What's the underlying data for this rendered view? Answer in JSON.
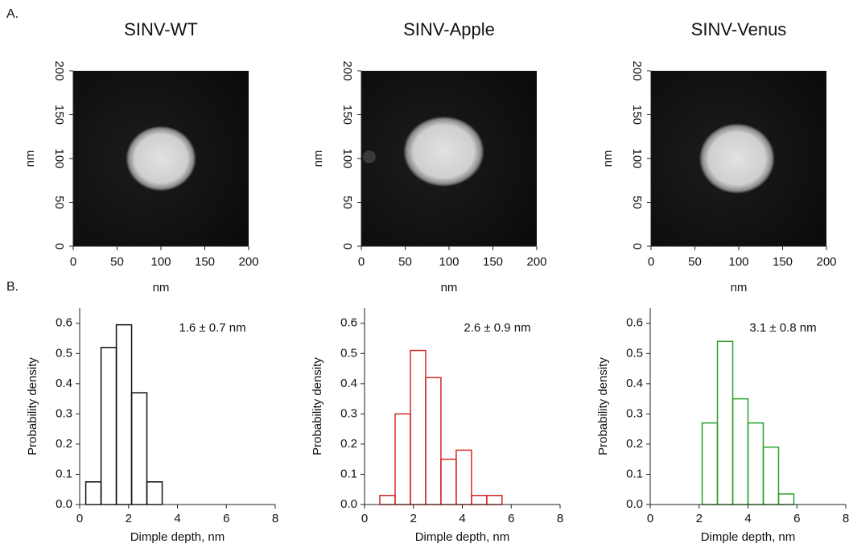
{
  "panel_labels": [
    "A.",
    "B."
  ],
  "chart_data": [
    {
      "type": "image",
      "title": "SINV-WT",
      "xlabel": "nm",
      "ylabel": "nm",
      "xlim": [
        0,
        200
      ],
      "ylim": [
        0,
        200
      ],
      "xticks": [
        0,
        50,
        100,
        150,
        200
      ],
      "yticks": [
        0,
        50,
        100,
        150,
        200
      ]
    },
    {
      "type": "image",
      "title": "SINV-Apple",
      "xlabel": "nm",
      "ylabel": "nm",
      "xlim": [
        0,
        200
      ],
      "ylim": [
        0,
        200
      ],
      "xticks": [
        0,
        50,
        100,
        150,
        200
      ],
      "yticks": [
        0,
        50,
        100,
        150,
        200
      ]
    },
    {
      "type": "image",
      "title": "SINV-Venus",
      "xlabel": "nm",
      "ylabel": "nm",
      "xlim": [
        0,
        200
      ],
      "ylim": [
        0,
        200
      ],
      "xticks": [
        0,
        50,
        100,
        150,
        200
      ],
      "yticks": [
        0,
        50,
        100,
        150,
        200
      ]
    },
    {
      "type": "histogram",
      "annotation": "1.6 ± 0.7 nm",
      "xlabel": "Dimple depth, nm",
      "ylabel": "Probability density",
      "color": "#111111",
      "bins": [
        0.25,
        0.875,
        1.5,
        2.125,
        2.75,
        3.375,
        4.0,
        4.625,
        5.25,
        5.875,
        6.5,
        7.125,
        7.75
      ],
      "values": [
        0.075,
        0.52,
        0.595,
        0.37,
        0.075,
        0,
        0,
        0,
        0,
        0,
        0,
        0
      ],
      "xlim": [
        0,
        8
      ],
      "ylim": [
        0,
        0.65
      ],
      "xticks": [
        0,
        2,
        4,
        6,
        8
      ],
      "yticks": [
        {
          "value": 0,
          "label": "0.0"
        },
        0.1,
        0.2,
        0.3,
        0.4,
        0.5,
        0.6
      ]
    },
    {
      "type": "histogram",
      "annotation": "2.6 ± 0.9 nm",
      "xlabel": "Dimple depth, nm",
      "ylabel": "Probability density",
      "color": "#d42a2a",
      "bins": [
        0.0,
        0.625,
        1.25,
        1.875,
        2.5,
        3.125,
        3.75,
        4.375,
        5.0,
        5.625,
        6.25,
        6.875,
        7.5
      ],
      "values": [
        0,
        0.03,
        0.3,
        0.51,
        0.42,
        0.15,
        0.18,
        0.03,
        0.03,
        0,
        0,
        0
      ],
      "xlim": [
        0,
        8
      ],
      "ylim": [
        0,
        0.65
      ],
      "xticks": [
        0,
        2,
        4,
        6,
        8
      ],
      "yticks": [
        {
          "value": 0,
          "label": "0.0"
        },
        0.1,
        0.2,
        0.3,
        0.4,
        0.5,
        0.6
      ]
    },
    {
      "type": "histogram",
      "annotation": "3.1 ± 0.8 nm",
      "xlabel": "Dimple depth, nm",
      "ylabel": "Probability density",
      "color": "#2aa02a",
      "bins": [
        0.25,
        0.875,
        1.5,
        2.125,
        2.75,
        3.375,
        4.0,
        4.625,
        5.25,
        5.875,
        6.5,
        7.125,
        7.75
      ],
      "values": [
        0,
        0,
        0,
        0.27,
        0.54,
        0.35,
        0.27,
        0.19,
        0.035,
        0,
        0,
        0
      ],
      "xlim": [
        0,
        8
      ],
      "ylim": [
        0,
        0.65
      ],
      "xticks": [
        0,
        2,
        4,
        6,
        8
      ],
      "yticks": [
        {
          "value": 0,
          "label": "0.0"
        },
        0.1,
        0.2,
        0.3,
        0.4,
        0.5,
        0.6
      ]
    }
  ]
}
